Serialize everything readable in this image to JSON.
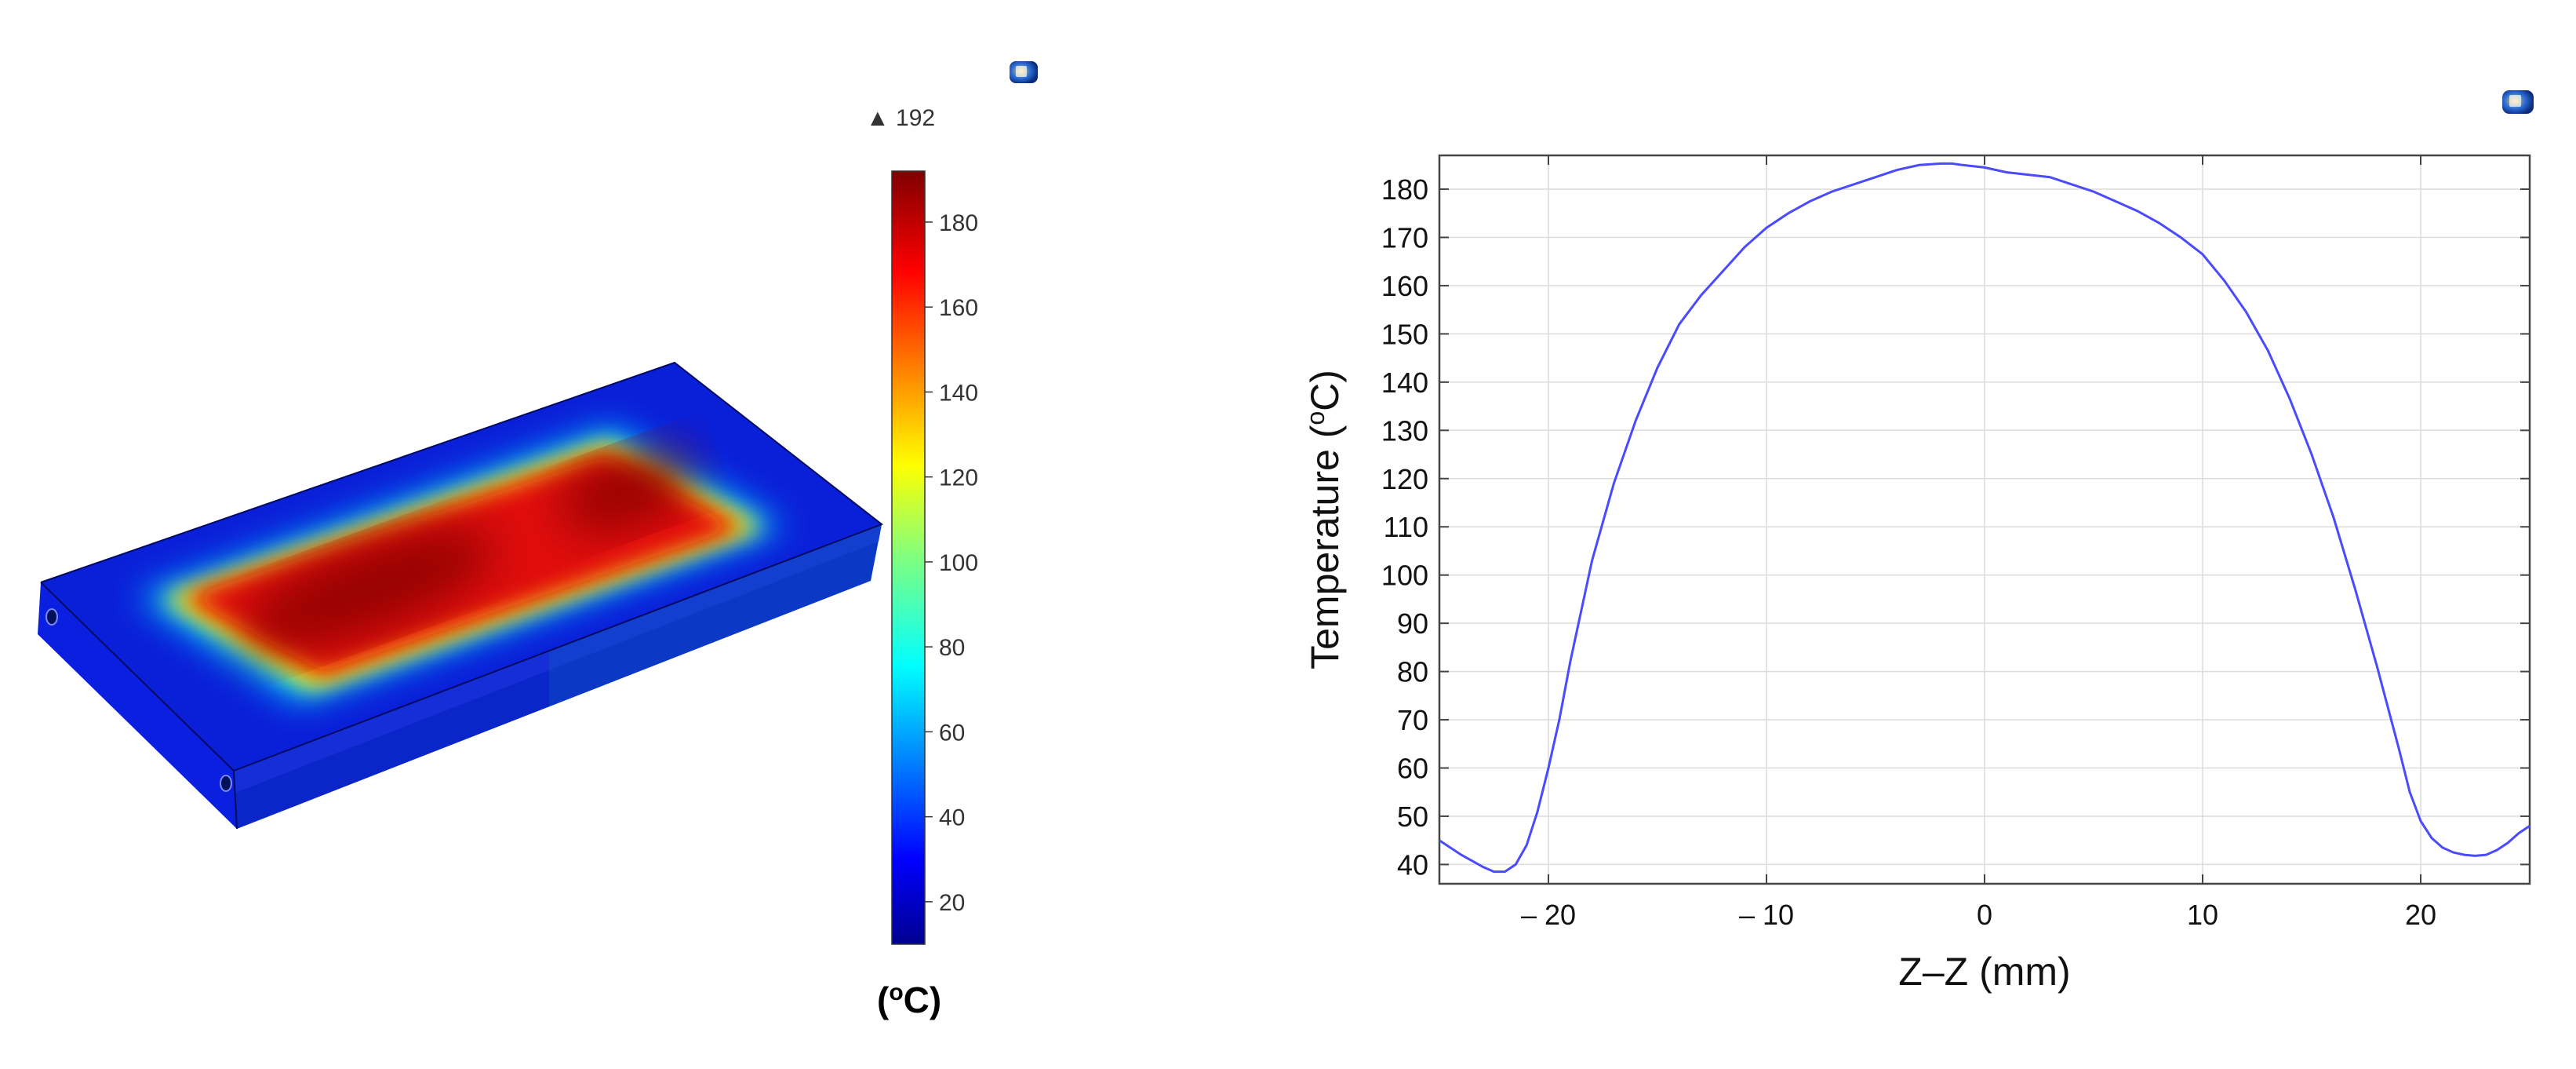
{
  "colorbar": {
    "max_marker": "▲ 192",
    "max": 192,
    "min": 10,
    "ticks": [
      20,
      40,
      60,
      80,
      100,
      120,
      140,
      160,
      180
    ],
    "unit_label": "(oC)",
    "unit_base": "(",
    "unit_sup": "o",
    "unit_tail": "C)"
  },
  "chart_data": {
    "type": "line",
    "title": "",
    "xlabel": "Z–Z (mm)",
    "ylabel": "Temperature (oC)",
    "ylabel_base": "Temperature (",
    "ylabel_sup": "o",
    "ylabel_tail": "C)",
    "xlim": [
      -25,
      25
    ],
    "ylim": [
      36,
      187
    ],
    "x_ticks": [
      -20,
      -10,
      0,
      10,
      20
    ],
    "x_tick_labels": [
      "– 20",
      "– 10",
      "0",
      "10",
      "20"
    ],
    "y_ticks": [
      40,
      50,
      60,
      70,
      80,
      90,
      100,
      110,
      120,
      130,
      140,
      150,
      160,
      170,
      180
    ],
    "grid": true,
    "line_color": "#4a4aff",
    "series": [
      {
        "x": [
          -25,
          -24,
          -23,
          -22.5,
          -22,
          -21.5,
          -21,
          -20.5,
          -20,
          -19.5,
          -19,
          -18,
          -17,
          -16,
          -15,
          -14,
          -13,
          -12,
          -11,
          -10,
          -9,
          -8,
          -7,
          -6,
          -5,
          -4,
          -3,
          -2,
          -1.5,
          -1,
          0,
          1,
          2,
          3,
          4,
          5,
          6,
          7,
          8,
          9,
          10,
          11,
          12,
          13,
          14,
          15,
          16,
          17,
          18,
          19,
          19.5,
          20,
          20.5,
          21,
          21.5,
          22,
          22.5,
          23,
          23.5,
          24,
          24.5,
          25
        ],
        "y": [
          45,
          42,
          39.5,
          38.5,
          38.5,
          40,
          44,
          51,
          60,
          70,
          82,
          103,
          119,
          132,
          143,
          152,
          158,
          163,
          168,
          172,
          175,
          177.5,
          179.5,
          181,
          182.5,
          184,
          185,
          185.3,
          185.3,
          185,
          184.5,
          183.5,
          183,
          182.5,
          181,
          179.5,
          177.5,
          175.5,
          173,
          170,
          166.5,
          161,
          154.5,
          146.5,
          136.5,
          125,
          112,
          97,
          81,
          64,
          55,
          49,
          45.5,
          43.5,
          42.5,
          42,
          41.8,
          42,
          43,
          44.5,
          46.5,
          48
        ]
      }
    ]
  }
}
